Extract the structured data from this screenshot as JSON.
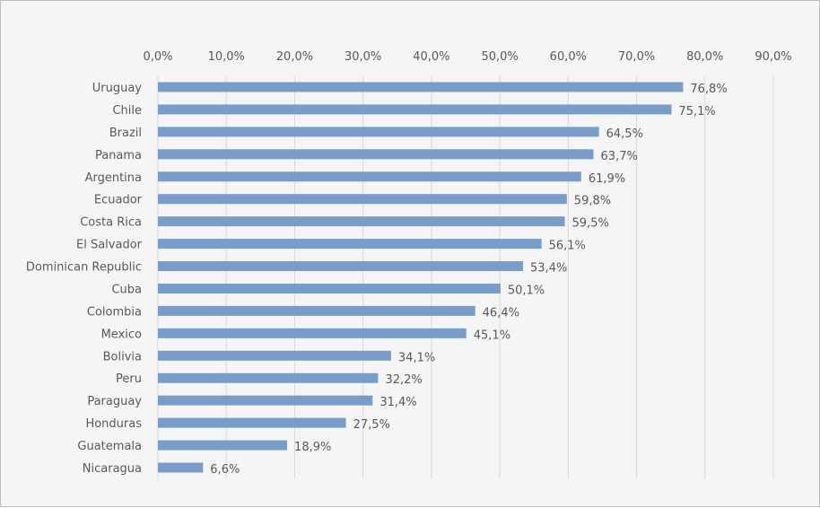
{
  "chart_data": {
    "type": "bar",
    "orientation": "horizontal",
    "categories": [
      "Uruguay",
      "Chile",
      "Brazil",
      "Panama",
      "Argentina",
      "Ecuador",
      "Costa Rica",
      "El Salvador",
      "Dominican Republic",
      "Cuba",
      "Colombia",
      "Mexico",
      "Bolivia",
      "Peru",
      "Paraguay",
      "Honduras",
      "Guatemala",
      "Nicaragua"
    ],
    "values": [
      76.8,
      75.1,
      64.5,
      63.7,
      61.9,
      59.8,
      59.5,
      56.1,
      53.4,
      50.1,
      46.4,
      45.1,
      34.1,
      32.2,
      31.4,
      27.5,
      18.9,
      6.6
    ],
    "data_labels": [
      "76,8%",
      "75,1%",
      "64,5%",
      "63,7%",
      "61,9%",
      "59,8%",
      "59,5%",
      "56,1%",
      "53,4%",
      "50,1%",
      "46,4%",
      "45,1%",
      "34,1%",
      "32,2%",
      "31,4%",
      "27,5%",
      "18,9%",
      "6,6%"
    ],
    "xlim": [
      0,
      90
    ],
    "x_ticks": [
      "0,0%",
      "10,0%",
      "20,0%",
      "30,0%",
      "40,0%",
      "50,0%",
      "60,0%",
      "70,0%",
      "80,0%",
      "90,0%"
    ],
    "axis_position": "top",
    "grid": true,
    "bar_color": "#7a9cc8",
    "title": "",
    "xlabel": "",
    "ylabel": ""
  }
}
